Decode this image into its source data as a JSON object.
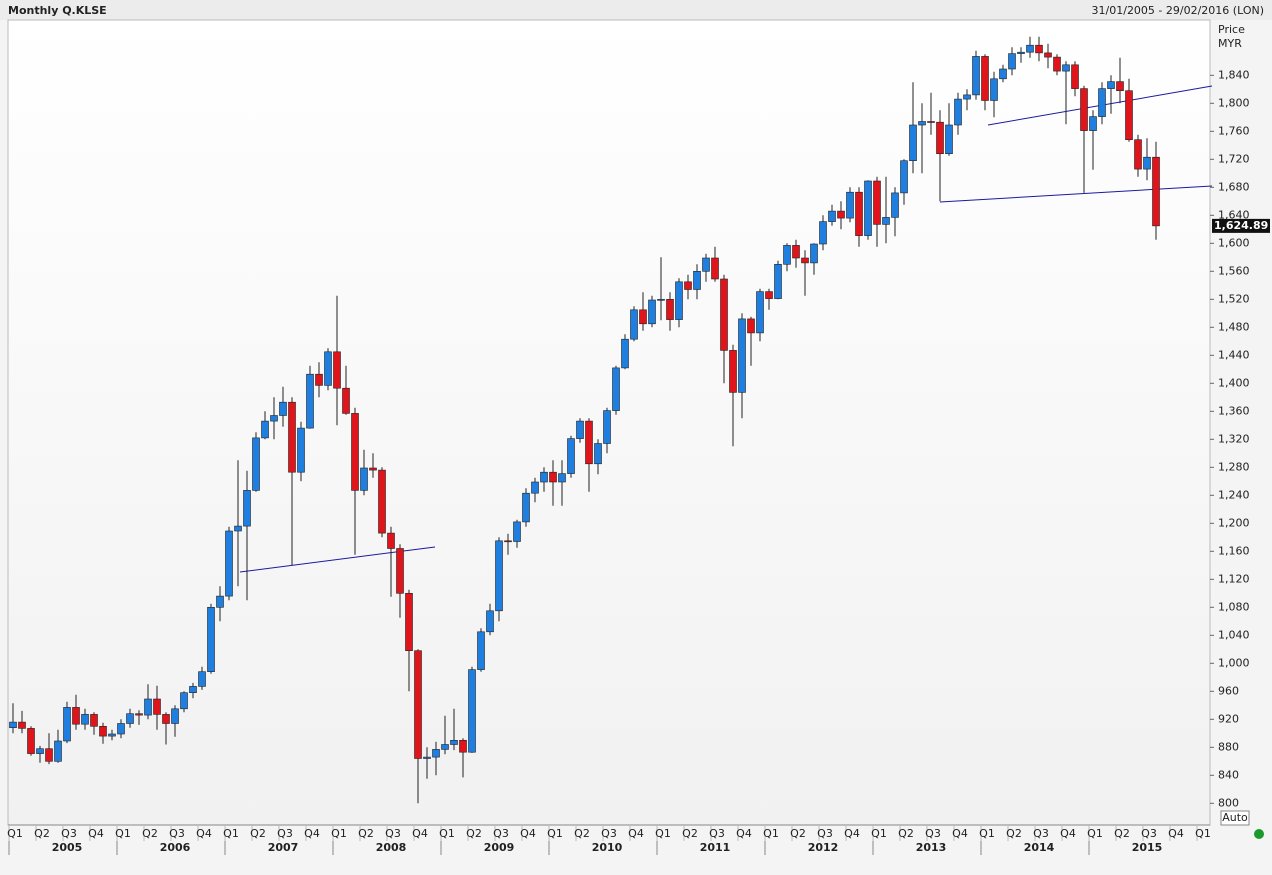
{
  "chart_data": {
    "type": "candlestick",
    "title": "Monthly Q.KLSE",
    "date_range": "31/01/2005 - 29/02/2016 (LON)",
    "y_label": "Price",
    "y_unit": "MYR",
    "scale_mode": "Auto",
    "up_color": "#1f7fe0",
    "down_color": "#e0151b",
    "ylim": [
      769,
      1919
    ],
    "yticks": [
      800,
      840,
      880,
      920,
      960,
      {
        "value": 1000,
        "label": "1,000"
      },
      {
        "value": 1040,
        "label": "1,040"
      },
      {
        "value": 1080,
        "label": "1,080"
      },
      {
        "value": 1120,
        "label": "1,120"
      },
      {
        "value": 1160,
        "label": "1,160"
      },
      {
        "value": 1200,
        "label": "1,200"
      },
      {
        "value": 1240,
        "label": "1,240"
      },
      {
        "value": 1280,
        "label": "1,280"
      },
      {
        "value": 1320,
        "label": "1,320"
      },
      {
        "value": 1360,
        "label": "1,360"
      },
      {
        "value": 1400,
        "label": "1,400"
      },
      {
        "value": 1440,
        "label": "1,440"
      },
      {
        "value": 1480,
        "label": "1,480"
      },
      {
        "value": 1520,
        "label": "1,520"
      },
      {
        "value": 1560,
        "label": "1,560"
      },
      {
        "value": 1600,
        "label": "1,600"
      },
      {
        "value": 1640,
        "label": "1,640"
      },
      {
        "value": 1680,
        "label": "1,680"
      },
      {
        "value": 1720,
        "label": "1,720"
      },
      {
        "value": 1760,
        "label": "1,760"
      },
      {
        "value": 1800,
        "label": "1,800"
      },
      {
        "value": 1840,
        "label": "1,840"
      }
    ],
    "last_price": {
      "value": 1624.89,
      "label": "1,624.89"
    },
    "quarter_labels": [
      "Q1",
      "Q2",
      "Q3",
      "Q4",
      "Q1",
      "Q2",
      "Q3",
      "Q4",
      "Q1",
      "Q2",
      "Q3",
      "Q4",
      "Q1",
      "Q2",
      "Q3",
      "Q4",
      "Q1",
      "Q2",
      "Q3",
      "Q4",
      "Q1",
      "Q2",
      "Q3",
      "Q4",
      "Q1",
      "Q2",
      "Q3",
      "Q4",
      "Q1",
      "Q2",
      "Q3",
      "Q4",
      "Q1",
      "Q2",
      "Q3",
      "Q4",
      "Q1",
      "Q2",
      "Q3",
      "Q4",
      "Q1",
      "Q2",
      "Q3",
      "Q4",
      "Q1"
    ],
    "year_labels": [
      "2005",
      "2006",
      "2007",
      "2008",
      "2009",
      "2010",
      "2011",
      "2012",
      "2013",
      "2014",
      "2015"
    ],
    "open": [
      908,
      916,
      907,
      871,
      878,
      860,
      889,
      937,
      913,
      927,
      910,
      896,
      899,
      914,
      928,
      926,
      949,
      927,
      914,
      935,
      958,
      967,
      988,
      1080,
      1096,
      1189,
      1196,
      1247,
      1322,
      1346,
      1354,
      1373,
      1273,
      1336,
      1413,
      1397,
      1445,
      1393,
      1357,
      1247,
      1279,
      1276,
      1186,
      1164,
      1100,
      1018,
      864,
      866,
      877,
      884,
      890,
      873,
      991,
      1045,
      1075,
      1175,
      1174,
      1202,
      1243,
      1259,
      1273,
      1259,
      1271,
      1321,
      1346,
      1285,
      1314,
      1361,
      1422,
      1463,
      1505,
      1485,
      1519,
      1520,
      1491,
      1545,
      1534,
      1560,
      1579,
      1549,
      1447,
      1387,
      1492,
      1472,
      1531,
      1521,
      1570,
      1597,
      1579,
      1572,
      1599,
      1631,
      1646,
      1636,
      1673,
      1611,
      1689,
      1627,
      1637,
      1672,
      1718,
      1769,
      1774,
      1773,
      1728,
      1769,
      1806,
      1812,
      1867,
      1804,
      1835,
      1849,
      1871,
      1873,
      1883,
      1872,
      1866,
      1846,
      1855,
      1821,
      1761,
      1781,
      1821,
      1831,
      1818,
      1748,
      1706,
      1723
    ],
    "high": [
      943,
      932,
      910,
      882,
      900,
      905,
      945,
      955,
      935,
      930,
      915,
      905,
      920,
      935,
      933,
      970,
      968,
      930,
      940,
      960,
      972,
      995,
      1085,
      1110,
      1195,
      1290,
      1275,
      1330,
      1360,
      1380,
      1395,
      1380,
      1345,
      1425,
      1430,
      1450,
      1525,
      1425,
      1365,
      1305,
      1300,
      1280,
      1195,
      1170,
      1105,
      1020,
      880,
      888,
      925,
      935,
      893,
      995,
      1050,
      1085,
      1180,
      1185,
      1205,
      1250,
      1265,
      1280,
      1290,
      1290,
      1325,
      1350,
      1350,
      1320,
      1365,
      1425,
      1470,
      1510,
      1530,
      1525,
      1580,
      1530,
      1550,
      1555,
      1570,
      1585,
      1595,
      1555,
      1455,
      1500,
      1495,
      1535,
      1535,
      1575,
      1600,
      1605,
      1590,
      1600,
      1640,
      1655,
      1660,
      1680,
      1680,
      1690,
      1695,
      1695,
      1680,
      1720,
      1830,
      1800,
      1815,
      1790,
      1800,
      1815,
      1820,
      1875,
      1870,
      1845,
      1855,
      1880,
      1880,
      1895,
      1895,
      1885,
      1870,
      1860,
      1860,
      1825,
      1790,
      1830,
      1840,
      1865,
      1835,
      1755,
      1750,
      1745
    ],
    "low": [
      900,
      900,
      868,
      858,
      856,
      858,
      886,
      905,
      905,
      898,
      885,
      890,
      893,
      908,
      912,
      920,
      905,
      884,
      895,
      930,
      950,
      962,
      985,
      1060,
      1090,
      1110,
      1090,
      1245,
      1320,
      1320,
      1338,
      1140,
      1260,
      1335,
      1380,
      1390,
      1340,
      1355,
      1155,
      1240,
      1265,
      1180,
      1095,
      1065,
      960,
      800,
      835,
      840,
      870,
      876,
      837,
      872,
      988,
      1040,
      1060,
      1155,
      1165,
      1195,
      1230,
      1245,
      1225,
      1225,
      1265,
      1315,
      1245,
      1270,
      1300,
      1355,
      1420,
      1460,
      1475,
      1480,
      1490,
      1475,
      1480,
      1520,
      1520,
      1545,
      1545,
      1400,
      1310,
      1350,
      1425,
      1460,
      1505,
      1520,
      1560,
      1565,
      1525,
      1555,
      1590,
      1625,
      1620,
      1630,
      1595,
      1605,
      1595,
      1600,
      1610,
      1655,
      1700,
      1700,
      1755,
      1660,
      1725,
      1755,
      1790,
      1805,
      1790,
      1780,
      1830,
      1840,
      1858,
      1865,
      1860,
      1850,
      1840,
      1770,
      1810,
      1672,
      1705,
      1770,
      1785,
      1800,
      1745,
      1695,
      1690,
      1605
    ],
    "close": [
      916,
      907,
      871,
      878,
      860,
      889,
      937,
      913,
      927,
      910,
      896,
      899,
      914,
      928,
      926,
      949,
      927,
      914,
      935,
      958,
      967,
      988,
      1080,
      1096,
      1189,
      1196,
      1247,
      1322,
      1346,
      1354,
      1373,
      1273,
      1336,
      1413,
      1397,
      1445,
      1393,
      1357,
      1247,
      1279,
      1276,
      1186,
      1164,
      1100,
      1018,
      864,
      866,
      877,
      884,
      890,
      873,
      991,
      1045,
      1075,
      1175,
      1174,
      1202,
      1243,
      1259,
      1273,
      1259,
      1271,
      1321,
      1346,
      1285,
      1314,
      1361,
      1422,
      1463,
      1505,
      1485,
      1519,
      1520,
      1491,
      1545,
      1534,
      1560,
      1579,
      1549,
      1447,
      1387,
      1492,
      1472,
      1531,
      1521,
      1570,
      1597,
      1579,
      1572,
      1599,
      1631,
      1646,
      1636,
      1673,
      1611,
      1689,
      1627,
      1637,
      1672,
      1718,
      1769,
      1774,
      1773,
      1728,
      1769,
      1806,
      1812,
      1867,
      1804,
      1835,
      1849,
      1871,
      1873,
      1883,
      1872,
      1866,
      1846,
      1855,
      1821,
      1761,
      1781,
      1821,
      1831,
      1818,
      1748,
      1706,
      1723,
      1624.89
    ]
  }
}
